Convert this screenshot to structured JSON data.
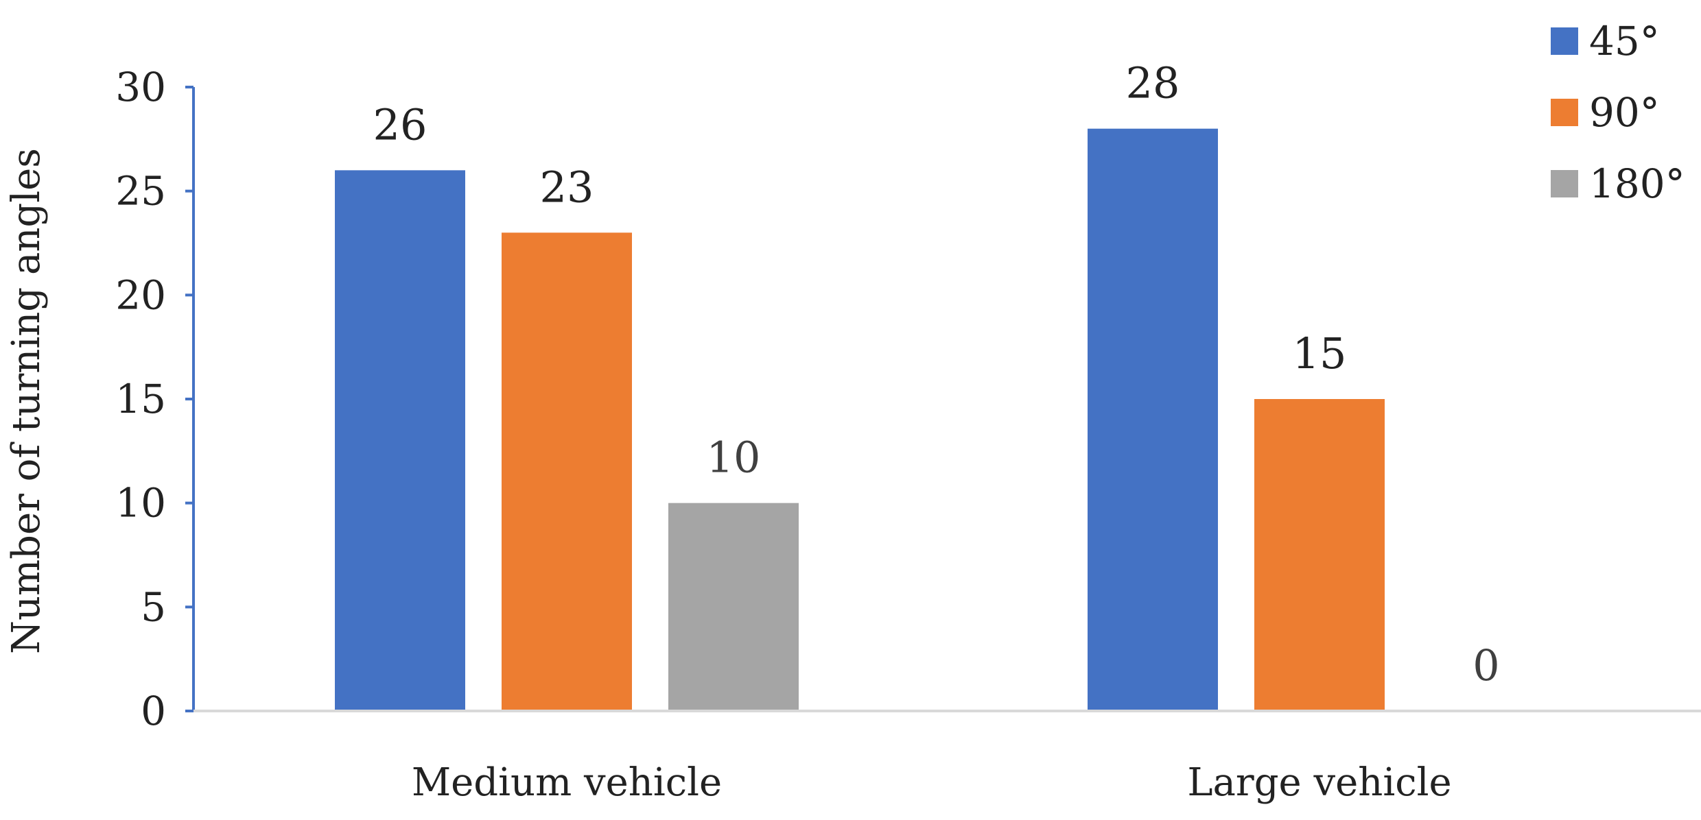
{
  "chart_data": {
    "type": "bar",
    "categories": [
      "Medium vehicle",
      "Large vehicle"
    ],
    "series": [
      {
        "name": "45°",
        "values": [
          26,
          28
        ],
        "color": "#4472C4"
      },
      {
        "name": "90°",
        "values": [
          23,
          15
        ],
        "color": "#ED7D31"
      },
      {
        "name": "180°",
        "values": [
          10,
          0
        ],
        "color": "#A5A5A5"
      }
    ],
    "ylabel": "Number of turning angles",
    "xlabel": "",
    "ylim": [
      0,
      30
    ],
    "yticks": [
      0,
      5,
      10,
      15,
      20,
      25,
      30
    ],
    "data_labels": true,
    "grid": false,
    "legend_position": "top-right",
    "axis_color": "#4472C4",
    "baseline_color": "#D9D9D9"
  }
}
